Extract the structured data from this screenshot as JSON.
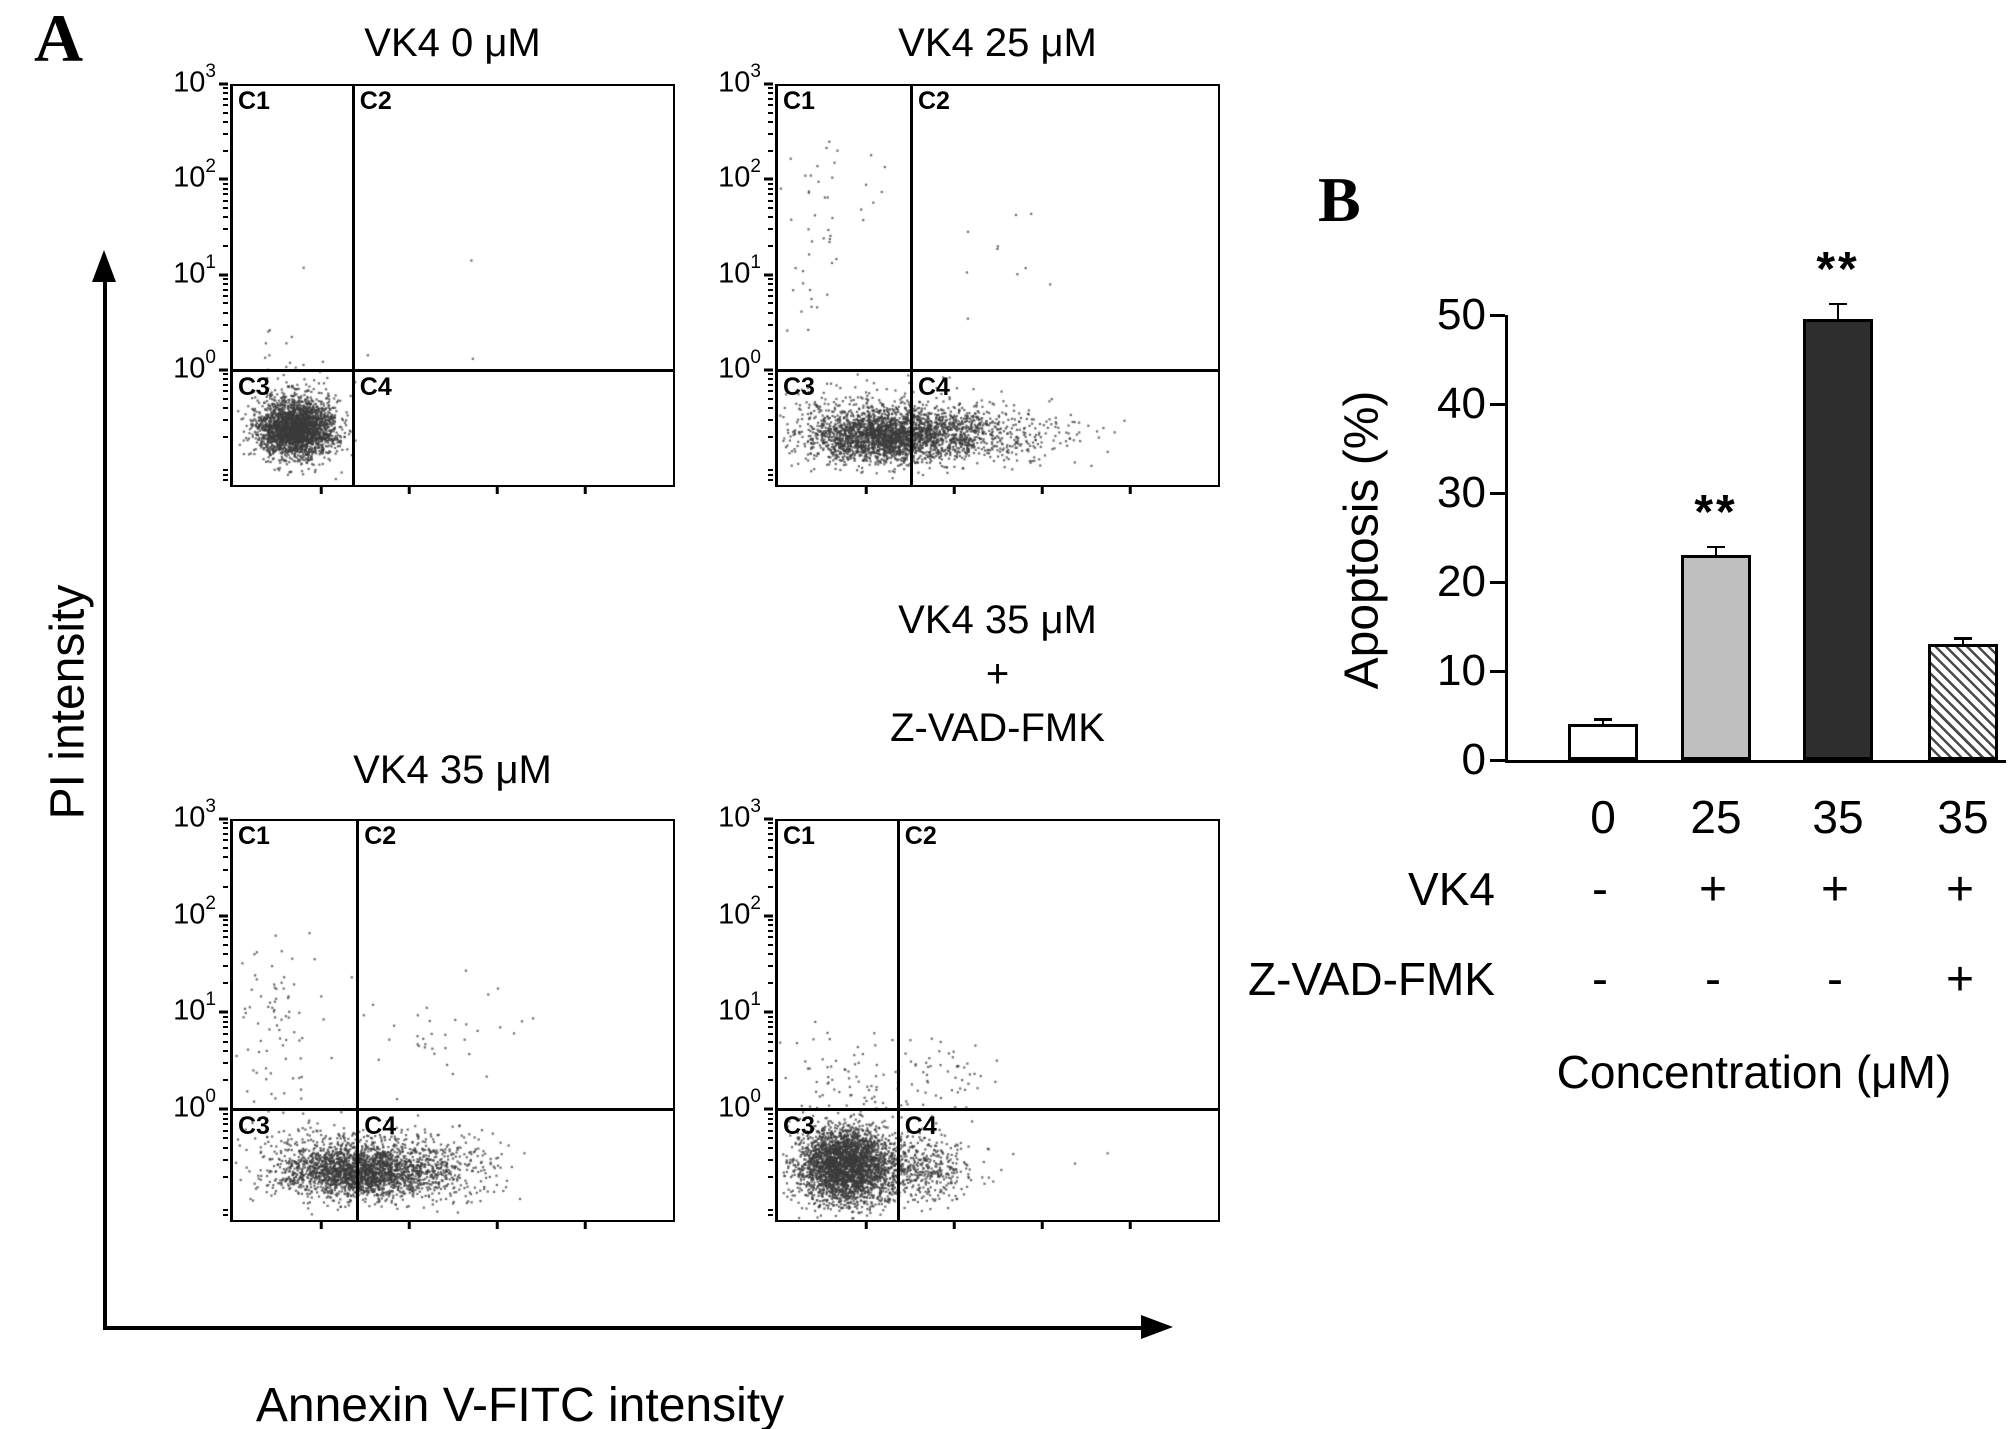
{
  "figure": {
    "panelA": {
      "label": "A",
      "x_axis_label": "Annexin V-FITC intensity",
      "y_axis_label": "PI intensity"
    },
    "panelB": {
      "label": "B"
    }
  },
  "chart_data": [
    {
      "type": "scatter",
      "subtype": "flow-cytometry",
      "title": "VK4 0 μM",
      "title_lines": [
        "VK4 0 μM"
      ],
      "xlabel": "Annexin V-FITC intensity",
      "ylabel": "PI intensity",
      "x_scale": "log",
      "y_scale": "log",
      "y_ticks": [
        {
          "base": "10",
          "exp": "3"
        },
        {
          "base": "10",
          "exp": "2"
        },
        {
          "base": "10",
          "exp": "1"
        },
        {
          "base": "10",
          "exp": "0"
        }
      ],
      "quadrant_labels": [
        "C1",
        "C2",
        "C3",
        "C4"
      ],
      "gates": {
        "vline_frac": 0.27,
        "hline_frac": 0.71
      },
      "population_summary": "single dense viable population in C3 (Annexin V-/PI-)",
      "clusters": [
        {
          "cx": 0.14,
          "cy": 0.858,
          "sx": 0.044,
          "sy": 0.036,
          "n": 2600
        },
        {
          "cx": 0.14,
          "cy": 0.77,
          "sx": 0.05,
          "sy": 0.035,
          "n": 60
        },
        {
          "cx": 0.13,
          "cy": 0.66,
          "sx": 0.05,
          "sy": 0.06,
          "n": 14
        },
        {
          "cx": 0.35,
          "cy": 0.5,
          "sx": 0.2,
          "sy": 0.22,
          "n": 5
        }
      ],
      "seed": 11
    },
    {
      "type": "scatter",
      "subtype": "flow-cytometry",
      "title": "VK4 25 μM",
      "title_lines": [
        "VK4 25 μM"
      ],
      "xlabel": "Annexin V-FITC intensity",
      "ylabel": "PI intensity",
      "x_scale": "log",
      "y_scale": "log",
      "y_ticks": [
        {
          "base": "10",
          "exp": "3"
        },
        {
          "base": "10",
          "exp": "2"
        },
        {
          "base": "10",
          "exp": "1"
        },
        {
          "base": "10",
          "exp": "0"
        }
      ],
      "quadrant_labels": [
        "C1",
        "C2",
        "C3",
        "C4"
      ],
      "gates": {
        "vline_frac": 0.3,
        "hline_frac": 0.71
      },
      "population_summary": "viable population spreading right into C4 (early apoptotic), scattered events in C1/C2",
      "clusters": [
        {
          "cx": 0.22,
          "cy": 0.875,
          "sx": 0.08,
          "sy": 0.032,
          "n": 2000
        },
        {
          "cx": 0.38,
          "cy": 0.872,
          "sx": 0.08,
          "sy": 0.036,
          "n": 800
        },
        {
          "cx": 0.55,
          "cy": 0.87,
          "sx": 0.08,
          "sy": 0.04,
          "n": 150
        },
        {
          "cx": 0.2,
          "cy": 0.79,
          "sx": 0.12,
          "sy": 0.025,
          "n": 120
        },
        {
          "cx": 0.08,
          "cy": 0.33,
          "sx": 0.04,
          "sy": 0.17,
          "n": 40
        },
        {
          "cx": 0.17,
          "cy": 0.22,
          "sx": 0.05,
          "sy": 0.1,
          "n": 12
        },
        {
          "cx": 0.45,
          "cy": 0.42,
          "sx": 0.1,
          "sy": 0.13,
          "n": 10
        }
      ],
      "seed": 22
    },
    {
      "type": "scatter",
      "subtype": "flow-cytometry",
      "title": "VK4 35 μM",
      "title_lines": [
        "VK4 35 μM"
      ],
      "xlabel": "Annexin V-FITC intensity",
      "ylabel": "PI intensity",
      "x_scale": "log",
      "y_scale": "log",
      "y_ticks": [
        {
          "base": "10",
          "exp": "3"
        },
        {
          "base": "10",
          "exp": "2"
        },
        {
          "base": "10",
          "exp": "1"
        },
        {
          "base": "10",
          "exp": "0"
        }
      ],
      "quadrant_labels": [
        "C1",
        "C2",
        "C3",
        "C4"
      ],
      "gates": {
        "vline_frac": 0.28,
        "hline_frac": 0.72
      },
      "population_summary": "broad population shifted into C4, scattered events in C1 and C2",
      "clusters": [
        {
          "cx": 0.28,
          "cy": 0.875,
          "sx": 0.09,
          "sy": 0.034,
          "n": 2200
        },
        {
          "cx": 0.46,
          "cy": 0.872,
          "sx": 0.08,
          "sy": 0.04,
          "n": 300
        },
        {
          "cx": 0.25,
          "cy": 0.8,
          "sx": 0.15,
          "sy": 0.025,
          "n": 130
        },
        {
          "cx": 0.1,
          "cy": 0.55,
          "sx": 0.05,
          "sy": 0.09,
          "n": 55
        },
        {
          "cx": 0.12,
          "cy": 0.4,
          "sx": 0.05,
          "sy": 0.07,
          "n": 25
        },
        {
          "cx": 0.42,
          "cy": 0.56,
          "sx": 0.1,
          "sy": 0.07,
          "n": 28
        },
        {
          "cx": 0.57,
          "cy": 0.55,
          "sx": 0.08,
          "sy": 0.06,
          "n": 8
        }
      ],
      "seed": 33
    },
    {
      "type": "scatter",
      "subtype": "flow-cytometry",
      "title": "VK4 35 μM + Z-VAD-FMK",
      "title_lines": [
        "VK4 35 μM",
        "+",
        "Z-VAD-FMK"
      ],
      "xlabel": "Annexin V-FITC intensity",
      "ylabel": "PI intensity",
      "x_scale": "log",
      "y_scale": "log",
      "y_ticks": [
        {
          "base": "10",
          "exp": "3"
        },
        {
          "base": "10",
          "exp": "2"
        },
        {
          "base": "10",
          "exp": "1"
        },
        {
          "base": "10",
          "exp": "0"
        }
      ],
      "quadrant_labels": [
        "C1",
        "C2",
        "C3",
        "C4"
      ],
      "gates": {
        "vline_frac": 0.27,
        "hline_frac": 0.72
      },
      "population_summary": "dense viable population restored in C3 with modest spill into C4",
      "clusters": [
        {
          "cx": 0.15,
          "cy": 0.86,
          "sx": 0.055,
          "sy": 0.048,
          "n": 3000
        },
        {
          "cx": 0.32,
          "cy": 0.87,
          "sx": 0.06,
          "sy": 0.045,
          "n": 450
        },
        {
          "cx": 0.2,
          "cy": 0.64,
          "sx": 0.09,
          "sy": 0.05,
          "n": 80
        },
        {
          "cx": 0.38,
          "cy": 0.63,
          "sx": 0.06,
          "sy": 0.05,
          "n": 35
        },
        {
          "cx": 0.55,
          "cy": 0.85,
          "sx": 0.12,
          "sy": 0.06,
          "n": 8
        }
      ],
      "seed": 44
    },
    {
      "type": "bar",
      "title": "",
      "ylabel": "Apoptosis (%)",
      "xlabel": "Concentration (μM)",
      "ylim": [
        0,
        50
      ],
      "yticks": [
        0,
        10,
        20,
        30,
        40,
        50
      ],
      "categories": [
        "0",
        "25",
        "35",
        "35"
      ],
      "values": [
        4,
        23,
        49.5,
        13
      ],
      "errors": [
        0.4,
        0.8,
        1.6,
        0.5
      ],
      "significance": [
        "",
        "**",
        "**",
        ""
      ],
      "bar_styles": [
        "white",
        "lightgray",
        "darkgray",
        "hatched"
      ],
      "colors": {
        "white": "#ffffff",
        "lightgray": "#bfbfbf",
        "darkgray": "#2e2e2e",
        "hatch_line": "#4a4a4a"
      },
      "legend_position": "none",
      "grid": false,
      "treatment_rows": [
        {
          "label": "VK4",
          "signs": [
            "-",
            "+",
            "+",
            "+"
          ]
        },
        {
          "label": "Z-VAD-FMK",
          "signs": [
            "-",
            "-",
            "-",
            "+"
          ]
        }
      ]
    }
  ]
}
